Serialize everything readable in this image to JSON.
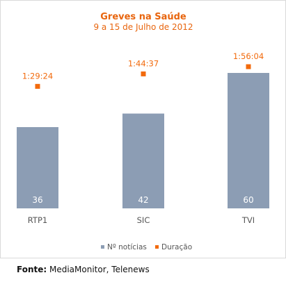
{
  "colors": {
    "bar": "#8c9db4",
    "marker": "#f26a0c",
    "title": "#e8650e",
    "axis_text": "#555555",
    "value_text": "#ffffff"
  },
  "chart_data": {
    "type": "bar",
    "title": "Greves na Saúde",
    "subtitle": "9 a 15 de Julho de 2012",
    "categories": [
      "RTP1",
      "SIC",
      "TVI"
    ],
    "series": [
      {
        "name": "Nº notícias",
        "kind": "bar",
        "values": [
          36,
          42,
          60
        ],
        "labels": [
          "36",
          "42",
          "60"
        ]
      },
      {
        "name": "Duração",
        "kind": "marker",
        "values_seconds": [
          5364,
          6277,
          6964
        ],
        "labels": [
          "1:29:24",
          "1:44:37",
          "1:56:04"
        ]
      }
    ],
    "legend": {
      "placement": "bottom",
      "items": [
        "Nº notícias",
        "Duração"
      ]
    },
    "grid": false
  },
  "source": {
    "label": "Fonte:",
    "text": " MediaMonitor, Telenews"
  }
}
